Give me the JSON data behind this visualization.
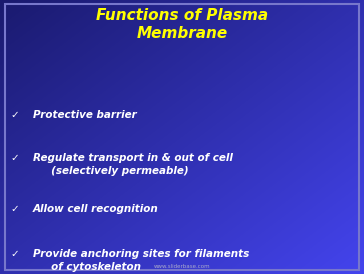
{
  "title_line1": "Functions of Plasma",
  "title_line2": "Membrane",
  "title_color": "#FFFF00",
  "bullet_color": "#FFFFFF",
  "background_topleft": "#1a1a6e",
  "background_bottomright": "#3a3aee",
  "border_color": "#7777cc",
  "bullet_char": "✓",
  "bullets": [
    "Protective barrier",
    "Regulate transport in & out of cell\n     (selectively permeable)",
    "Allow cell recognition",
    "Provide anchoring sites for filaments\n     of cytoskeleton"
  ],
  "watermark": "www.sliderbase.com",
  "figsize": [
    3.64,
    2.74
  ],
  "dpi": 100
}
